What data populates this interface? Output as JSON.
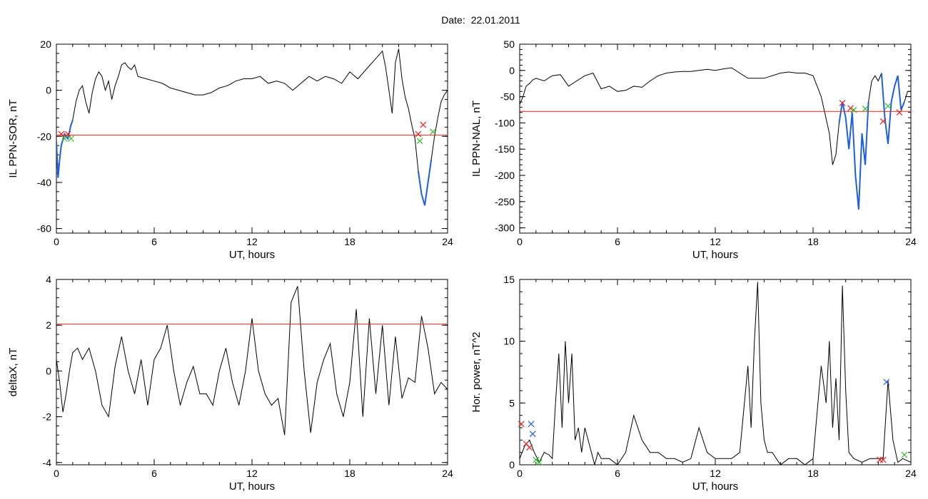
{
  "page": {
    "date_label": "Date:",
    "date_value": "22.01.2011"
  },
  "colors": {
    "trace": "#000000",
    "threshold": "#e8231e",
    "highlight": "#1e5fe0",
    "marker_red": "#e8231e",
    "marker_green": "#2fbf2a",
    "marker_blue": "#1e5fe0"
  },
  "chart_data": [
    {
      "id": "p1",
      "type": "line",
      "xlabel": "UT, hours",
      "ylabel": "IL PPN-SOR, nT",
      "xlim": [
        0,
        24
      ],
      "ylim": [
        -62,
        20
      ],
      "xticks": [
        0,
        6,
        12,
        18,
        24
      ],
      "xticklabels": [
        "0",
        "6",
        "12",
        "18",
        "24"
      ],
      "yticks": [
        20,
        0,
        -20,
        -40,
        -60
      ],
      "yticklabels": [
        "20",
        "0",
        "-20",
        "-40",
        "-60"
      ],
      "threshold": -19.5,
      "series": [
        {
          "x": [
            0,
            0.1,
            0.2,
            0.3,
            0.5,
            0.7,
            0.9,
            1,
            1.2,
            1.4,
            1.6,
            1.8,
            2,
            2.2,
            2.4,
            2.6,
            2.8,
            3,
            3.2,
            3.4,
            3.6,
            3.8,
            4,
            4.2,
            4.4,
            4.6,
            4.8,
            5,
            5.5,
            6,
            6.5,
            7,
            7.5,
            8,
            8.5,
            9,
            9.5,
            10,
            10.5,
            11,
            11.5,
            12,
            12.5,
            13,
            13.5,
            14,
            14.5,
            15,
            15.5,
            16,
            16.5,
            17,
            17.5,
            18,
            18.5,
            19,
            19.5,
            20,
            20.2,
            20.4,
            20.6,
            20.8,
            21,
            21.2,
            21.4,
            21.6,
            21.8,
            22,
            22.2,
            22.4,
            22.6,
            22.8,
            23,
            23.2,
            23.4,
            23.6,
            23.8,
            24
          ],
          "y": [
            -22,
            -38,
            -30,
            -24,
            -19,
            -21,
            -15,
            -13,
            -5,
            0,
            2,
            -5,
            -10,
            -1,
            5,
            8,
            6,
            0,
            4,
            -4,
            2,
            6,
            11,
            12,
            10,
            9,
            11,
            6,
            5,
            4,
            3,
            1,
            0,
            -1,
            -2,
            -2,
            -1,
            1,
            2,
            4,
            5,
            5,
            6,
            3,
            4,
            3,
            0,
            3,
            6,
            4,
            6,
            5,
            3,
            8,
            5,
            9,
            13,
            17,
            10,
            0,
            -10,
            12,
            18,
            5,
            -3,
            -8,
            -15,
            -21,
            -35,
            -45,
            -50,
            -40,
            -30,
            -20,
            -12,
            -5,
            -2,
            0
          ]
        }
      ],
      "highlight_x": [
        [
          0,
          1.0
        ],
        [
          22.1,
          23.0
        ]
      ],
      "markers": [
        {
          "x": 0.3,
          "y": -19,
          "color": "red"
        },
        {
          "x": 0.5,
          "y": -21,
          "color": "green"
        },
        {
          "x": 0.7,
          "y": -19,
          "color": "red"
        },
        {
          "x": 0.9,
          "y": -21,
          "color": "green"
        },
        {
          "x": 22.2,
          "y": -19,
          "color": "red"
        },
        {
          "x": 22.3,
          "y": -22,
          "color": "green"
        },
        {
          "x": 22.5,
          "y": -15,
          "color": "red"
        },
        {
          "x": 23.1,
          "y": -18,
          "color": "green"
        }
      ]
    },
    {
      "id": "p2",
      "type": "line",
      "xlabel": "UT, hours",
      "ylabel": "IL PPN-NAL, nT",
      "xlim": [
        0,
        24
      ],
      "ylim": [
        -310,
        50
      ],
      "xticks": [
        0,
        6,
        12,
        18,
        24
      ],
      "xticklabels": [
        "0",
        "6",
        "12",
        "18",
        "24"
      ],
      "yticks": [
        50,
        0,
        -50,
        -100,
        -150,
        -200,
        -250,
        -300
      ],
      "yticklabels": [
        "50",
        "0",
        "-50",
        "-100",
        "-150",
        "-200",
        "-250",
        "-300"
      ],
      "threshold": -78,
      "series": [
        {
          "x": [
            0,
            0.2,
            0.4,
            0.6,
            0.8,
            1,
            1.5,
            2,
            2.5,
            3,
            3.5,
            4,
            4.5,
            5,
            5.5,
            6,
            6.5,
            7,
            7.5,
            8,
            8.5,
            9,
            9.5,
            10,
            10.5,
            11,
            11.5,
            12,
            12.5,
            13,
            13.5,
            14,
            14.5,
            15,
            15.5,
            16,
            16.5,
            17,
            17.5,
            18,
            18.5,
            19,
            19.2,
            19.4,
            19.6,
            19.8,
            20,
            20.2,
            20.4,
            20.6,
            20.8,
            21,
            21.2,
            21.4,
            21.6,
            21.8,
            22,
            22.2,
            22.4,
            22.6,
            22.8,
            23,
            23.2,
            23.4,
            23.6,
            23.8,
            24
          ],
          "y": [
            -65,
            -50,
            -30,
            -25,
            -18,
            -15,
            -20,
            -10,
            -8,
            -30,
            -20,
            -10,
            -5,
            -35,
            -30,
            -40,
            -38,
            -30,
            -32,
            -20,
            -10,
            -5,
            -3,
            -2,
            -2,
            0,
            2,
            0,
            3,
            5,
            -5,
            -15,
            -15,
            -15,
            -10,
            -5,
            -3,
            -5,
            -5,
            -10,
            -50,
            -120,
            -180,
            -160,
            -100,
            -60,
            -90,
            -150,
            -80,
            -200,
            -265,
            -120,
            -180,
            -60,
            -20,
            -10,
            -20,
            -5,
            -90,
            -140,
            -60,
            -30,
            -10,
            -75,
            -60,
            -40,
            -40
          ]
        }
      ],
      "highlight_x": [
        [
          19.6,
          21.5
        ],
        [
          22.2,
          23.6
        ]
      ],
      "markers": [
        {
          "x": 19.8,
          "y": -62,
          "color": "red"
        },
        {
          "x": 20.3,
          "y": -72,
          "color": "red"
        },
        {
          "x": 20.5,
          "y": -75,
          "color": "green"
        },
        {
          "x": 21.2,
          "y": -73,
          "color": "green"
        },
        {
          "x": 22.3,
          "y": -97,
          "color": "red"
        },
        {
          "x": 22.6,
          "y": -68,
          "color": "green"
        },
        {
          "x": 23.3,
          "y": -80,
          "color": "red"
        }
      ]
    },
    {
      "id": "p3",
      "type": "line",
      "xlabel": "UT, hours",
      "ylabel": "deltaX, nT",
      "xlim": [
        0,
        24
      ],
      "ylim": [
        -4.1,
        4
      ],
      "xticks": [
        0,
        6,
        12,
        18,
        24
      ],
      "xticklabels": [
        "0",
        "6",
        "12",
        "18",
        "24"
      ],
      "yticks": [
        4,
        2,
        0,
        -2,
        -4
      ],
      "yticklabels": [
        "4",
        "2",
        "0",
        "-2",
        "-4"
      ],
      "threshold": 2.05,
      "series": [
        {
          "x": [
            0,
            0.2,
            0.4,
            0.6,
            0.8,
            1,
            1.3,
            1.6,
            2,
            2.4,
            2.8,
            3.2,
            3.6,
            4,
            4.4,
            4.8,
            5.2,
            5.6,
            6,
            6.4,
            6.8,
            7.2,
            7.6,
            8,
            8.4,
            8.8,
            9.2,
            9.6,
            10,
            10.4,
            10.8,
            11.2,
            11.6,
            12,
            12.4,
            12.8,
            13.2,
            13.6,
            14,
            14.4,
            14.8,
            15.2,
            15.6,
            16,
            16.4,
            16.8,
            17.2,
            17.6,
            18,
            18.4,
            18.8,
            19.2,
            19.6,
            20,
            20.4,
            20.8,
            21.2,
            21.6,
            22,
            22.4,
            22.8,
            23.2,
            23.6,
            24
          ],
          "y": [
            0.5,
            -0.5,
            -1.8,
            -1,
            0,
            0.8,
            1,
            0.5,
            1,
            0,
            -1.5,
            -2,
            0.2,
            1.5,
            0,
            -1,
            0.5,
            -1.5,
            0.5,
            1,
            2,
            0,
            -1.5,
            -0.5,
            0.2,
            -1,
            -1,
            -1.5,
            0,
            1,
            -0.5,
            -1.5,
            0,
            2.3,
            0,
            -1,
            -1.5,
            -1.2,
            -2.8,
            3,
            3.7,
            0,
            -2.7,
            -0.5,
            0.5,
            1.2,
            -1,
            -2,
            -0.5,
            2.7,
            -2,
            2.3,
            -1,
            2,
            -1.5,
            1.5,
            -1.2,
            -0.3,
            -0.5,
            2.4,
            1,
            -1,
            -0.5,
            -0.8
          ]
        }
      ],
      "highlight_x": [],
      "markers": []
    },
    {
      "id": "p4",
      "type": "line",
      "xlabel": "UT, hours",
      "ylabel": "Hor. power, nT^2",
      "xlim": [
        0,
        24
      ],
      "ylim": [
        0,
        15
      ],
      "xticks": [
        0,
        6,
        12,
        18,
        24
      ],
      "xticklabels": [
        "0",
        "6",
        "12",
        "18",
        "24"
      ],
      "yticks": [
        15,
        10,
        5,
        0
      ],
      "yticklabels": [
        "15",
        "10",
        "5",
        "0"
      ],
      "threshold": null,
      "series": [
        {
          "x": [
            0,
            0.3,
            0.6,
            0.9,
            1.2,
            1.5,
            1.8,
            2,
            2.2,
            2.4,
            2.6,
            2.8,
            3,
            3.2,
            3.4,
            3.6,
            3.8,
            4,
            4.2,
            4.4,
            4.6,
            4.8,
            5,
            5.5,
            6,
            6.5,
            7,
            7.5,
            8,
            8.5,
            9,
            9.5,
            10,
            10.5,
            11,
            11.5,
            12,
            12.5,
            13,
            13.5,
            14,
            14.2,
            14.4,
            14.6,
            14.8,
            15,
            15.2,
            15.5,
            16,
            16.5,
            17,
            17.5,
            18,
            18.5,
            18.8,
            19,
            19.2,
            19.4,
            19.6,
            19.8,
            20,
            20.2,
            20.5,
            21,
            21.5,
            22,
            22.3,
            22.6,
            22.9,
            23.2,
            23.5,
            24
          ],
          "y": [
            0.5,
            1.5,
            2,
            1,
            0.2,
            1,
            0.8,
            0.5,
            5,
            9,
            3,
            10,
            5,
            9,
            2,
            3,
            1,
            3,
            2,
            1,
            0,
            1,
            0.5,
            0.5,
            0,
            1,
            4,
            2,
            1,
            1,
            0.5,
            0.5,
            0.2,
            0.5,
            3,
            1,
            0.5,
            0.5,
            0.5,
            1,
            8,
            3,
            10,
            14.8,
            5,
            2,
            1,
            1,
            0,
            0.5,
            0.5,
            0,
            0.5,
            8,
            5,
            10,
            3,
            7,
            2,
            14.5,
            6,
            1,
            0.5,
            0.2,
            0.5,
            0.5,
            0.5,
            6.8,
            2,
            0.2,
            0.5,
            0.2
          ]
        }
      ],
      "highlight_x": [],
      "markers": [
        {
          "x": 0.1,
          "y": 3.3,
          "color": "red"
        },
        {
          "x": 0.4,
          "y": 1.7,
          "color": "red"
        },
        {
          "x": 0.6,
          "y": 1.4,
          "color": "red"
        },
        {
          "x": 0.7,
          "y": 3.3,
          "color": "blue"
        },
        {
          "x": 0.8,
          "y": 2.5,
          "color": "blue"
        },
        {
          "x": 1,
          "y": 0.4,
          "color": "green"
        },
        {
          "x": 1.2,
          "y": 0.2,
          "color": "green"
        },
        {
          "x": 22.1,
          "y": 0.4,
          "color": "red"
        },
        {
          "x": 22.3,
          "y": 0.4,
          "color": "red"
        },
        {
          "x": 22.5,
          "y": 6.7,
          "color": "blue"
        },
        {
          "x": 23.6,
          "y": 0.8,
          "color": "green"
        }
      ]
    }
  ]
}
